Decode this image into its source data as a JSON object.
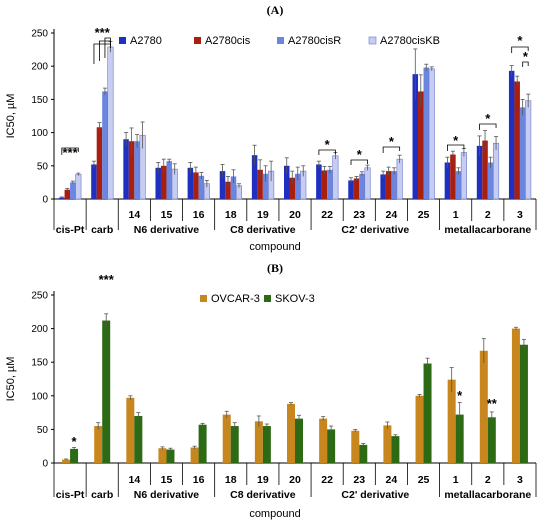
{
  "chart_data": [
    {
      "panel": "(A)",
      "type": "bar",
      "ylabel": "IC50, µM",
      "xlabel": "compound",
      "ylim": [
        0,
        250
      ],
      "yticks": [
        0,
        50,
        100,
        150,
        200,
        250
      ],
      "legend_position": "top",
      "categories": [
        "cis-Pt",
        "carb",
        "14",
        "15",
        "16",
        "18",
        "19",
        "20",
        "22",
        "23",
        "24",
        "25",
        "1",
        "2",
        "3"
      ],
      "groups": [
        {
          "label": "cis-Pt",
          "count": 1
        },
        {
          "label": "carb",
          "count": 1
        },
        {
          "label": "N6 derivative",
          "count": 3
        },
        {
          "label": "C8 derivative",
          "count": 3
        },
        {
          "label": "C2' derivative",
          "count": 4
        },
        {
          "label": "metallacarborane",
          "count": 3
        }
      ],
      "series": [
        {
          "name": "A2780",
          "color": "#1f2fbf",
          "values": [
            2,
            52,
            90,
            47,
            47,
            42,
            66,
            50,
            52,
            28,
            37,
            188,
            55,
            80,
            193
          ],
          "errors": [
            1,
            5,
            10,
            8,
            8,
            10,
            15,
            12,
            5,
            4,
            5,
            38,
            8,
            15,
            8
          ]
        },
        {
          "name": "A2780cis",
          "color": "#a81e0f",
          "values": [
            14,
            108,
            87,
            50,
            40,
            26,
            44,
            32,
            43,
            31,
            42,
            162,
            67,
            88,
            177
          ],
          "errors": [
            2,
            7,
            20,
            10,
            8,
            8,
            15,
            10,
            6,
            3,
            6,
            25,
            5,
            15,
            8
          ]
        },
        {
          "name": "A2780cisR",
          "color": "#6b86de",
          "values": [
            25,
            162,
            87,
            57,
            35,
            34,
            38,
            38,
            44,
            38,
            42,
            198,
            42,
            55,
            138
          ],
          "errors": [
            2,
            5,
            10,
            3,
            5,
            10,
            12,
            10,
            5,
            3,
            5,
            5,
            5,
            8,
            12
          ]
        },
        {
          "name": "A2780cisKB",
          "color": "#c7ccf2",
          "values": [
            37,
            229,
            96,
            45,
            23,
            20,
            42,
            42,
            65,
            47,
            60,
            196,
            70,
            84,
            148
          ],
          "errors": [
            2,
            8,
            20,
            8,
            5,
            3,
            15,
            8,
            5,
            4,
            6,
            3,
            6,
            10,
            10
          ]
        }
      ],
      "annotations": [
        {
          "text": "***",
          "category_from": "cis-Pt",
          "category_to": "cis-Pt"
        },
        {
          "text": "***",
          "category_from": "carb",
          "category_to": "carb"
        },
        {
          "text": "*",
          "category_from": "22",
          "category_to": "22"
        },
        {
          "text": "*",
          "category_from": "23",
          "category_to": "23"
        },
        {
          "text": "*",
          "category_from": "24",
          "category_to": "24"
        },
        {
          "text": "*",
          "category_from": "1",
          "category_to": "1"
        },
        {
          "text": "*",
          "category_from": "2",
          "category_to": "2"
        },
        {
          "text": "*",
          "category_from": "3",
          "category_to": "3"
        },
        {
          "text": "*",
          "category_from": "3",
          "category_to": "3"
        }
      ]
    },
    {
      "panel": "(B)",
      "type": "bar",
      "ylabel": "IC50, µM",
      "xlabel": "compound",
      "ylim": [
        0,
        250
      ],
      "yticks": [
        0,
        50,
        100,
        150,
        200,
        250
      ],
      "legend_position": "top-center",
      "categories": [
        "cis-Pt",
        "carb",
        "14",
        "15",
        "16",
        "18",
        "19",
        "20",
        "22",
        "23",
        "24",
        "25",
        "1",
        "2",
        "3"
      ],
      "groups": [
        {
          "label": "cis-Pt",
          "count": 1
        },
        {
          "label": "carb",
          "count": 1
        },
        {
          "label": "N6 derivative",
          "count": 3
        },
        {
          "label": "C8 derivative",
          "count": 3
        },
        {
          "label": "C2' derivative",
          "count": 4
        },
        {
          "label": "metallacarborane",
          "count": 3
        }
      ],
      "series": [
        {
          "name": "OVCAR-3",
          "color": "#c8861e",
          "values": [
            5,
            55,
            97,
            22,
            23,
            72,
            62,
            88,
            66,
            48,
            56,
            100,
            124,
            167,
            200
          ],
          "errors": [
            1,
            5,
            3,
            2,
            2,
            5,
            8,
            2,
            3,
            2,
            5,
            2,
            18,
            18,
            2
          ]
        },
        {
          "name": "SKOV-3",
          "color": "#2d6a16",
          "values": [
            21,
            212,
            70,
            20,
            57,
            55,
            55,
            66,
            50,
            27,
            40,
            148,
            72,
            68,
            176
          ],
          "errors": [
            2,
            10,
            5,
            2,
            2,
            5,
            3,
            5,
            5,
            2,
            2,
            8,
            18,
            8,
            8
          ]
        }
      ],
      "annotations": [
        {
          "text": "*",
          "category": "cis-Pt"
        },
        {
          "text": "***",
          "category": "carb"
        },
        {
          "text": "*",
          "category": "1"
        },
        {
          "text": "**",
          "category": "2"
        }
      ]
    }
  ]
}
